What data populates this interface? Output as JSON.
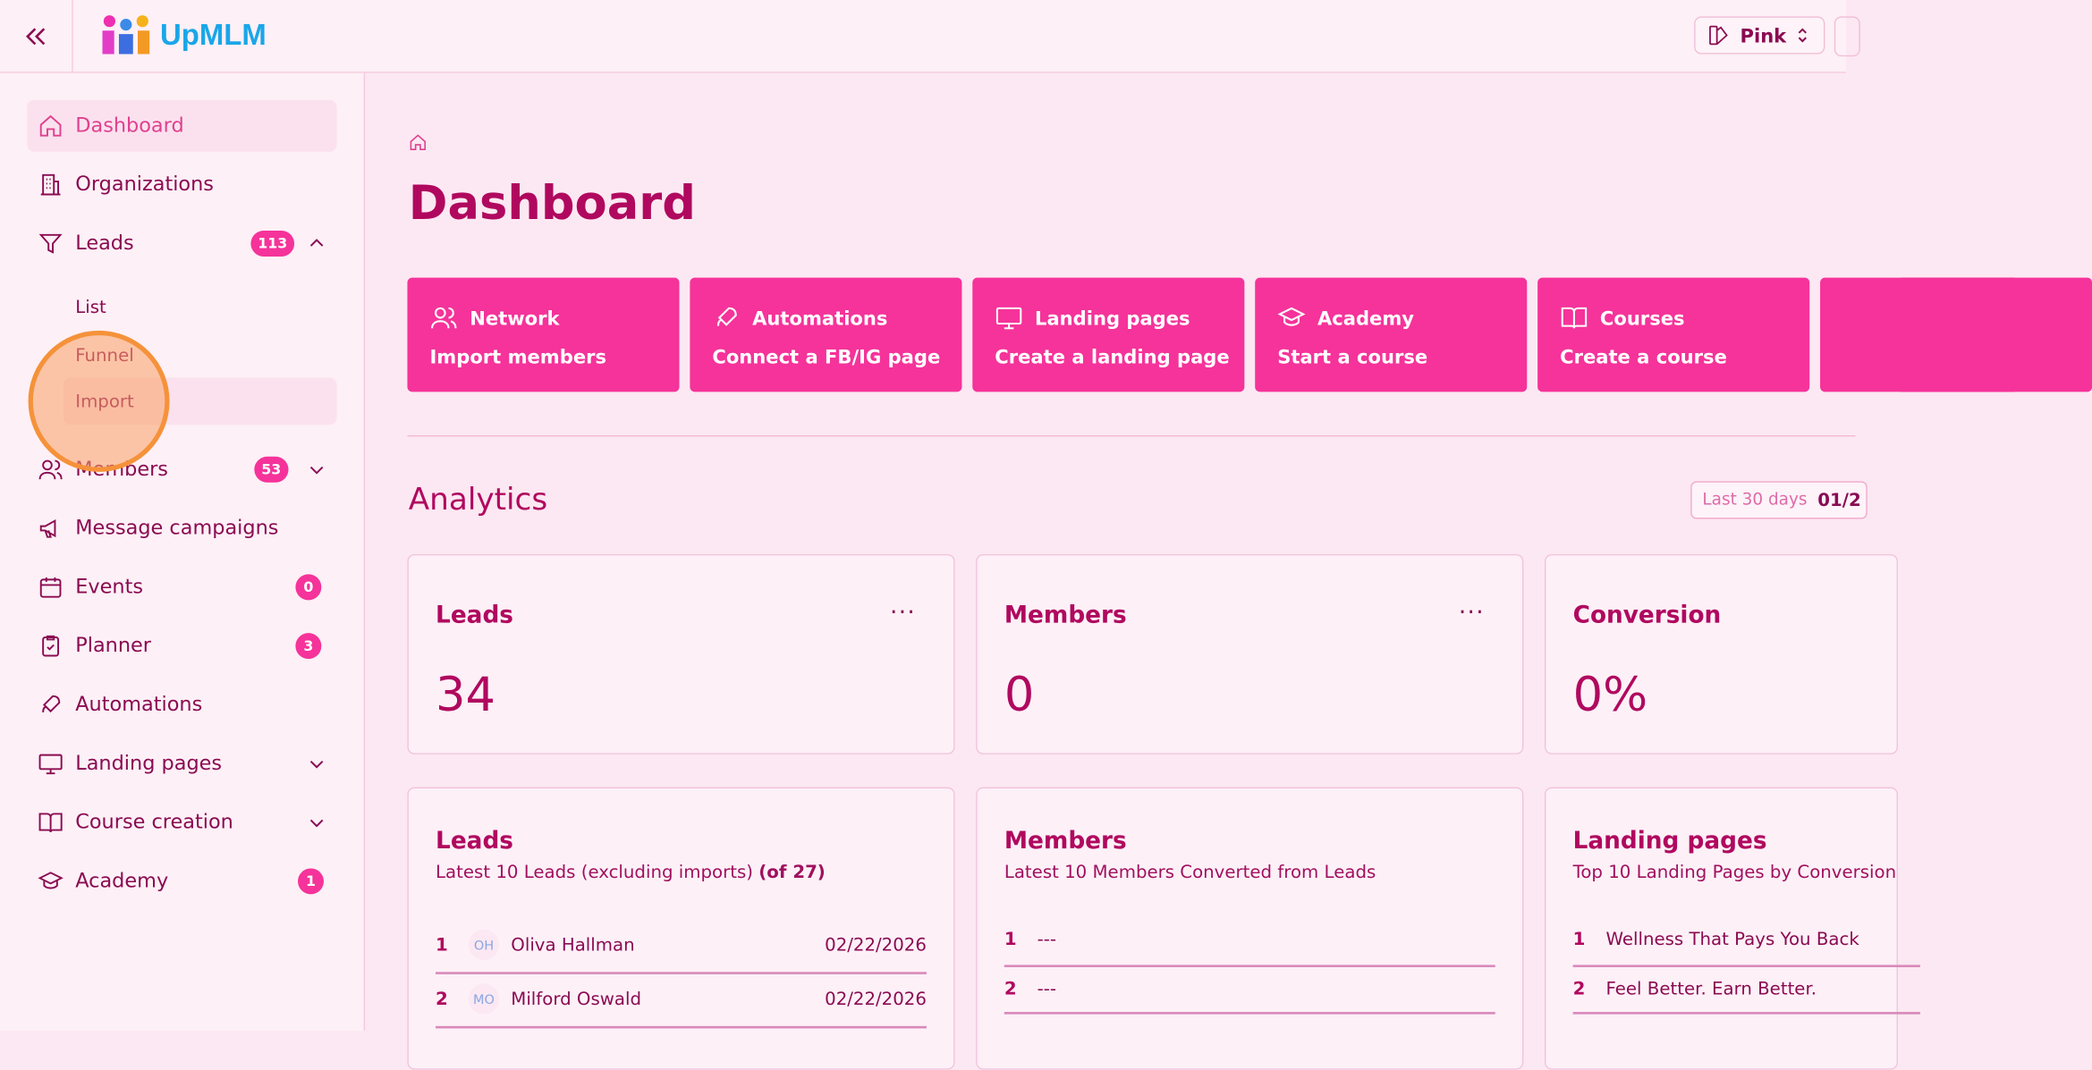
{
  "header": {
    "brand": "UpMLM",
    "theme_label": "Pink"
  },
  "sidebar": {
    "items": [
      {
        "label": "Dashboard",
        "icon": "home-icon"
      },
      {
        "label": "Organizations",
        "icon": "building-icon"
      },
      {
        "label": "Leads",
        "icon": "funnel-icon",
        "badge": "113",
        "sub": [
          "List",
          "Funnel",
          "Import"
        ]
      },
      {
        "label": "Members",
        "icon": "users-icon",
        "badge": "53"
      },
      {
        "label": "Message campaigns",
        "icon": "megaphone-icon"
      },
      {
        "label": "Events",
        "icon": "calendar-icon",
        "badge": "0"
      },
      {
        "label": "Planner",
        "icon": "clipboard-icon",
        "badge": "3"
      },
      {
        "label": "Automations",
        "icon": "rocket-icon"
      },
      {
        "label": "Landing pages",
        "icon": "monitor-icon"
      },
      {
        "label": "Course creation",
        "icon": "book-icon"
      },
      {
        "label": "Academy",
        "icon": "graduation-cap-icon",
        "badge": "1"
      }
    ]
  },
  "main": {
    "title": "Dashboard",
    "quick": [
      {
        "title": "Network",
        "sub": "Import members",
        "icon": "users-icon"
      },
      {
        "title": "Automations",
        "sub": "Connect a FB/IG page",
        "icon": "rocket-icon"
      },
      {
        "title": "Landing pages",
        "sub": "Create a landing page",
        "icon": "monitor-icon"
      },
      {
        "title": "Academy",
        "sub": "Start a course",
        "icon": "graduation-cap-icon"
      },
      {
        "title": "Courses",
        "sub": "Create a course",
        "icon": "book-icon"
      }
    ],
    "analytics": {
      "title": "Analytics",
      "range_label": "Last 30 days",
      "range_value": "01/2"
    },
    "stats": [
      {
        "title": "Leads",
        "value": "34"
      },
      {
        "title": "Members",
        "value": "0"
      },
      {
        "title": "Conversion",
        "value": "0%"
      }
    ],
    "lists": {
      "leads": {
        "title": "Leads",
        "subtitle": "Latest 10 Leads (excluding imports)",
        "count": "(of 27)",
        "rows": [
          {
            "n": "1",
            "initials": "OH",
            "name": "Oliva Hallman",
            "date": "02/22/2026"
          },
          {
            "n": "2",
            "initials": "MO",
            "name": "Milford Oswald",
            "date": "02/22/2026"
          }
        ]
      },
      "members": {
        "title": "Members",
        "subtitle": "Latest 10 Members Converted from Leads",
        "rows": [
          {
            "n": "1",
            "name": "---"
          },
          {
            "n": "2",
            "name": "---"
          }
        ]
      },
      "landing": {
        "title": "Landing pages",
        "subtitle": "Top 10 Landing Pages by Conversion",
        "rows": [
          {
            "n": "1",
            "name": "Wellness That Pays You Back"
          },
          {
            "n": "2",
            "name": "Feel Better. Earn Better."
          }
        ]
      }
    }
  },
  "colors": {
    "accent": "#f5339a",
    "text": "#8a0b52",
    "heading": "#b0085f",
    "background": "#fce8f2"
  }
}
